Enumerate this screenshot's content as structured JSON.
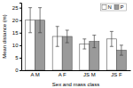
{
  "chart_data": {
    "type": "bar",
    "x_label": "Sex and mass class",
    "y_label": "Mean distance (m)",
    "categories": [
      "A M",
      "A F",
      "JS M",
      "JS F"
    ],
    "series": [
      {
        "name": "N",
        "color": "#ffffff",
        "values": [
          20,
          13.5,
          10.5,
          12.5
        ],
        "errors": [
          5,
          4,
          2,
          3
        ]
      },
      {
        "name": "P",
        "color": "#9a9a9a",
        "values": [
          20,
          13.5,
          11.5,
          8
        ],
        "errors": [
          5,
          2.5,
          2.5,
          2
        ]
      }
    ],
    "ylim": [
      0,
      27
    ],
    "yticks": [
      0,
      5,
      10,
      15,
      20,
      25
    ],
    "legend": "top-right"
  }
}
